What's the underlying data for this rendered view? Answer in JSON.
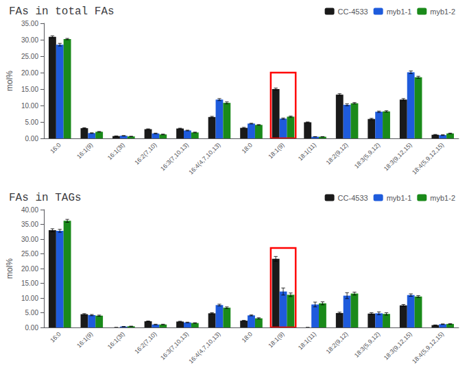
{
  "chart_data": [
    {
      "type": "bar",
      "title": "FAs in total FAs",
      "ylabel": "mol%",
      "categories": [
        "16:0",
        "16:1(9)",
        "16:1(3t)",
        "16:2(7,10)",
        "16:3(7,10,13)",
        "16:4(4,7,10,13)",
        "18:0",
        "18:1(9)",
        "18:1(11)",
        "18:2(9,12)",
        "18:3(5,9,12)",
        "18:3(9,12,15)",
        "18:4(5,9,12,15)"
      ],
      "series": [
        {
          "name": "CC-4533",
          "color": "#1a1a1a",
          "values": [
            30.9,
            3.1,
            0.7,
            2.8,
            3.0,
            6.5,
            3.2,
            15.0,
            4.9,
            13.3,
            5.9,
            11.8,
            1.1
          ],
          "errors": [
            0.3,
            0.15,
            0.05,
            0.1,
            0.1,
            0.2,
            0.15,
            0.3,
            0.1,
            0.3,
            0.2,
            0.3,
            0.1
          ]
        },
        {
          "name": "myb1-1",
          "color": "#1e5bdc",
          "values": [
            28.5,
            1.6,
            0.8,
            1.5,
            2.4,
            11.8,
            4.5,
            6.0,
            0.5,
            10.2,
            8.1,
            20.1,
            1.0
          ],
          "errors": [
            0.4,
            0.1,
            0.05,
            0.1,
            0.1,
            0.3,
            0.1,
            0.2,
            0.05,
            0.3,
            0.2,
            0.4,
            0.1
          ]
        },
        {
          "name": "myb1-2",
          "color": "#1a8a1a",
          "values": [
            30.2,
            2.0,
            0.6,
            1.2,
            1.8,
            10.8,
            4.1,
            6.6,
            0.5,
            10.7,
            8.2,
            18.6,
            1.5
          ],
          "errors": [
            0.2,
            0.1,
            0.05,
            0.1,
            0.1,
            0.3,
            0.1,
            0.2,
            0.05,
            0.2,
            0.2,
            0.3,
            0.1
          ]
        }
      ],
      "ylim": [
        0,
        35
      ],
      "yticks": [
        {
          "value": 0,
          "label": "0.00"
        },
        {
          "value": 5,
          "label": "5.00"
        },
        {
          "value": 10,
          "label": "10.00"
        },
        {
          "value": 15,
          "label": "15.00"
        },
        {
          "value": 20,
          "label": "20.00"
        },
        {
          "value": 25,
          "label": "25.00"
        },
        {
          "value": 30,
          "label": "30.00"
        },
        {
          "value": 35,
          "label": "35.00"
        }
      ],
      "grid": false,
      "legend": "upper right",
      "highlight": {
        "category": "18:1(9)",
        "top": 20.0,
        "color": "#ff0000"
      }
    },
    {
      "type": "bar",
      "title": "FAs in TAGs",
      "ylabel": "mol%",
      "categories": [
        "16:0",
        "16:1(9)",
        "16:1(3t)",
        "16:2(7,10)",
        "16:3(7,10,13)",
        "16:4(4,7,10,13)",
        "18:0",
        "18:1(9)",
        "18:1(11)",
        "18:2(9,12)",
        "18:3(5,9,12)",
        "18:3(9,12,15)",
        "18:4(5,9,12,15)"
      ],
      "series": [
        {
          "name": "CC-4533",
          "color": "#1a1a1a",
          "values": [
            33.0,
            4.5,
            0.0,
            2.1,
            2.0,
            4.8,
            2.3,
            23.3,
            0.0,
            4.9,
            4.7,
            7.5,
            0.8
          ],
          "errors": [
            0.5,
            0.2,
            0.0,
            0.1,
            0.1,
            0.2,
            0.1,
            0.8,
            0.0,
            0.3,
            0.3,
            0.3,
            0.05
          ]
        },
        {
          "name": "myb1-1",
          "color": "#1e5bdc",
          "values": [
            32.8,
            4.2,
            0.3,
            1.0,
            1.7,
            7.6,
            4.1,
            12.2,
            7.8,
            10.8,
            4.8,
            11.0,
            1.1
          ],
          "errors": [
            0.5,
            0.2,
            0.05,
            0.1,
            0.1,
            0.3,
            0.15,
            1.2,
            0.8,
            1.0,
            0.5,
            0.4,
            0.1
          ]
        },
        {
          "name": "myb1-2",
          "color": "#1a8a1a",
          "values": [
            36.2,
            4.0,
            0.4,
            1.0,
            1.5,
            6.7,
            3.1,
            11.1,
            8.2,
            11.5,
            4.6,
            10.5,
            1.2
          ],
          "errors": [
            0.5,
            0.2,
            0.05,
            0.1,
            0.1,
            0.3,
            0.2,
            0.6,
            0.5,
            0.5,
            0.4,
            0.3,
            0.1
          ]
        }
      ],
      "ylim": [
        0,
        40
      ],
      "yticks": [
        {
          "value": 0,
          "label": "0.00"
        },
        {
          "value": 5,
          "label": "5.00"
        },
        {
          "value": 10,
          "label": "10.00"
        },
        {
          "value": 15,
          "label": "15.00"
        },
        {
          "value": 20,
          "label": "20.00"
        },
        {
          "value": 25,
          "label": "25.00"
        },
        {
          "value": 30,
          "label": "30.00"
        },
        {
          "value": 35,
          "label": "35.00"
        },
        {
          "value": 40,
          "label": "40.00"
        }
      ],
      "grid": false,
      "legend": "upper right",
      "highlight": {
        "category": "18:1(9)",
        "top": 27.0,
        "color": "#ff0000"
      }
    }
  ]
}
